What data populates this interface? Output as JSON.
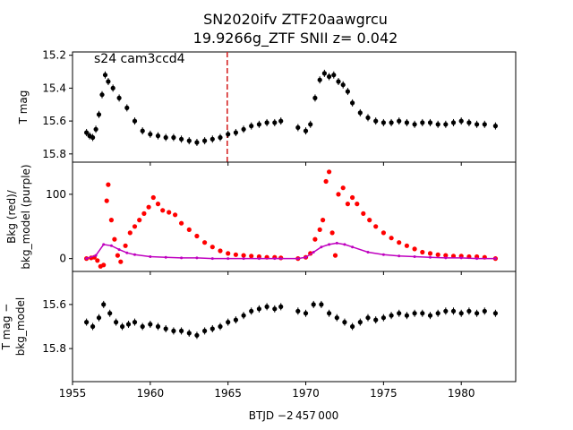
{
  "title_line1": "SN2020ifv  ZTF20aawgrcu",
  "title_line2": "19.9266g_ZTF SNII z= 0.042",
  "xlabel": "BTJD −2 457 000",
  "chart_data": [
    {
      "type": "scatter",
      "panel": "top",
      "ylabel": "T mag",
      "annotation": "s24 cam3ccd4",
      "y_inverted": true,
      "xlim": [
        1955.0,
        1983.5
      ],
      "ylim": [
        15.85,
        15.18
      ],
      "yticks": [
        15.2,
        15.4,
        15.6,
        15.8
      ],
      "vline_x": 1964.95,
      "vline_color": "#d62728",
      "series": [
        {
          "color": "#000000",
          "errorbars": true,
          "x": [
            1955.9,
            1956.1,
            1956.3,
            1956.5,
            1956.7,
            1956.9,
            1957.1,
            1957.3,
            1957.6,
            1958.0,
            1958.5,
            1959.0,
            1959.5,
            1960.0,
            1960.5,
            1961.0,
            1961.5,
            1962.0,
            1962.5,
            1963.0,
            1963.5,
            1964.0,
            1964.5,
            1965.0,
            1965.5,
            1966.0,
            1966.5,
            1967.0,
            1967.5,
            1968.0,
            1968.4,
            1969.5,
            1970.0,
            1970.3,
            1970.6,
            1970.9,
            1971.2,
            1971.5,
            1971.8,
            1972.1,
            1972.4,
            1972.7,
            1973.0,
            1973.5,
            1974.0,
            1974.5,
            1975.0,
            1975.5,
            1976.0,
            1976.5,
            1977.0,
            1977.5,
            1978.0,
            1978.5,
            1979.0,
            1979.5,
            1980.0,
            1980.5,
            1981.0,
            1981.5,
            1982.2
          ],
          "y": [
            15.67,
            15.69,
            15.7,
            15.65,
            15.56,
            15.44,
            15.32,
            15.36,
            15.4,
            15.46,
            15.52,
            15.6,
            15.66,
            15.68,
            15.69,
            15.7,
            15.7,
            15.71,
            15.72,
            15.73,
            15.72,
            15.71,
            15.7,
            15.68,
            15.67,
            15.65,
            15.63,
            15.62,
            15.61,
            15.61,
            15.6,
            15.64,
            15.66,
            15.62,
            15.46,
            15.35,
            15.31,
            15.33,
            15.32,
            15.36,
            15.38,
            15.42,
            15.49,
            15.55,
            15.58,
            15.6,
            15.61,
            15.61,
            15.6,
            15.61,
            15.62,
            15.61,
            15.61,
            15.62,
            15.62,
            15.61,
            15.6,
            15.61,
            15.62,
            15.62,
            15.63
          ]
        }
      ]
    },
    {
      "type": "scatter",
      "panel": "middle",
      "ylabel_line1": "Bkg (red)/",
      "ylabel_line2": "bkg_model (purple)",
      "xlim": [
        1955.0,
        1983.5
      ],
      "ylim": [
        -20,
        150
      ],
      "yticks": [
        0,
        100
      ],
      "series": [
        {
          "name": "Bkg",
          "color": "#ff0000",
          "x": [
            1955.9,
            1956.2,
            1956.4,
            1956.6,
            1956.8,
            1957.0,
            1957.2,
            1957.3,
            1957.5,
            1957.7,
            1957.9,
            1958.1,
            1958.4,
            1958.7,
            1959.0,
            1959.3,
            1959.6,
            1959.9,
            1960.2,
            1960.5,
            1960.8,
            1961.2,
            1961.6,
            1962.0,
            1962.5,
            1963.0,
            1963.5,
            1964.0,
            1964.5,
            1965.0,
            1965.5,
            1966.0,
            1966.5,
            1967.0,
            1967.5,
            1968.0,
            1968.4,
            1969.5,
            1970.0,
            1970.3,
            1970.6,
            1970.9,
            1971.1,
            1971.3,
            1971.5,
            1971.7,
            1971.9,
            1972.1,
            1972.4,
            1972.7,
            1973.0,
            1973.3,
            1973.7,
            1974.1,
            1974.5,
            1975.0,
            1975.5,
            1976.0,
            1976.5,
            1977.0,
            1977.5,
            1978.0,
            1978.5,
            1979.0,
            1979.5,
            1980.0,
            1980.5,
            1981.0,
            1981.5,
            1982.2
          ],
          "y": [
            0,
            1,
            2,
            -3,
            -12,
            -10,
            90,
            115,
            60,
            30,
            5,
            -5,
            20,
            40,
            50,
            60,
            70,
            80,
            95,
            85,
            75,
            72,
            68,
            55,
            45,
            35,
            25,
            18,
            12,
            8,
            6,
            5,
            4,
            3,
            2,
            2,
            1,
            0,
            2,
            8,
            30,
            45,
            60,
            120,
            135,
            40,
            5,
            100,
            110,
            85,
            95,
            85,
            70,
            60,
            50,
            40,
            32,
            25,
            20,
            15,
            10,
            8,
            6,
            5,
            4,
            4,
            3,
            3,
            2,
            0
          ]
        },
        {
          "name": "bkg_model",
          "color": "#bf00bf",
          "x": [
            1955.9,
            1956.5,
            1957.0,
            1957.5,
            1958.0,
            1958.5,
            1959.0,
            1960.0,
            1961.0,
            1962.0,
            1963.0,
            1964.0,
            1965.0,
            1966.0,
            1967.0,
            1968.0,
            1968.4,
            1969.5,
            1970.0,
            1970.5,
            1971.0,
            1971.5,
            1972.0,
            1972.5,
            1973.0,
            1974.0,
            1975.0,
            1976.0,
            1977.0,
            1978.0,
            1979.0,
            1980.0,
            1981.0,
            1982.2
          ],
          "y": [
            0,
            5,
            22,
            20,
            14,
            9,
            6,
            3,
            2,
            1,
            1,
            0,
            0,
            0,
            0,
            0,
            0,
            0,
            2,
            10,
            18,
            22,
            24,
            22,
            18,
            10,
            6,
            4,
            3,
            2,
            1,
            1,
            0,
            0
          ]
        }
      ]
    },
    {
      "type": "scatter",
      "panel": "bottom",
      "ylabel_line1": "T mag −",
      "ylabel_line2": "bkg_model",
      "y_inverted": true,
      "xlim": [
        1955.0,
        1983.5
      ],
      "ylim": [
        15.95,
        15.45
      ],
      "yticks": [
        15.6,
        15.8
      ],
      "xticks": [
        1955,
        1960,
        1965,
        1970,
        1975,
        1980
      ],
      "series": [
        {
          "color": "#000000",
          "errorbars": true,
          "x": [
            1955.9,
            1956.3,
            1956.7,
            1957.0,
            1957.4,
            1957.8,
            1958.2,
            1958.6,
            1959.0,
            1959.5,
            1960.0,
            1960.5,
            1961.0,
            1961.5,
            1962.0,
            1962.5,
            1963.0,
            1963.5,
            1964.0,
            1964.5,
            1965.0,
            1965.5,
            1966.0,
            1966.5,
            1967.0,
            1967.5,
            1968.0,
            1968.4,
            1969.5,
            1970.0,
            1970.5,
            1971.0,
            1971.5,
            1972.0,
            1972.5,
            1973.0,
            1973.5,
            1974.0,
            1974.5,
            1975.0,
            1975.5,
            1976.0,
            1976.5,
            1977.0,
            1977.5,
            1978.0,
            1978.5,
            1979.0,
            1979.5,
            1980.0,
            1980.5,
            1981.0,
            1981.5,
            1982.2
          ],
          "y": [
            15.68,
            15.7,
            15.66,
            15.6,
            15.64,
            15.68,
            15.7,
            15.69,
            15.68,
            15.7,
            15.69,
            15.7,
            15.71,
            15.72,
            15.72,
            15.73,
            15.74,
            15.72,
            15.71,
            15.7,
            15.68,
            15.67,
            15.65,
            15.63,
            15.62,
            15.61,
            15.62,
            15.61,
            15.63,
            15.64,
            15.6,
            15.6,
            15.64,
            15.66,
            15.68,
            15.7,
            15.68,
            15.66,
            15.67,
            15.66,
            15.65,
            15.64,
            15.65,
            15.64,
            15.64,
            15.65,
            15.64,
            15.63,
            15.63,
            15.64,
            15.63,
            15.64,
            15.63,
            15.64
          ]
        }
      ]
    }
  ]
}
